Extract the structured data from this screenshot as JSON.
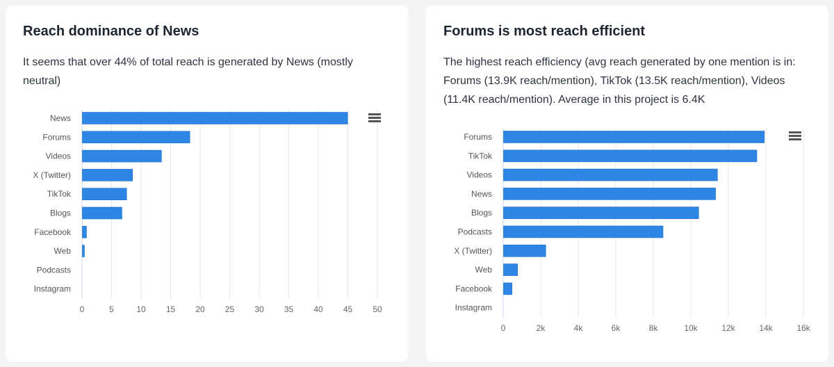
{
  "cards": [
    {
      "title": "Reach dominance of News",
      "description": "It seems that over 44% of total reach is generated by News (mostly neutral)",
      "menu_icon": "hamburger-menu-icon"
    },
    {
      "title": "Forums is most reach efficient",
      "description": "The highest reach efficiency (avg reach generated by one mention is in: Forums (13.9K reach/mention), TikTok (13.5K reach/mention), Videos (11.4K reach/mention). Average in this project is 6.4K",
      "menu_icon": "hamburger-menu-icon"
    }
  ],
  "chart_data": [
    {
      "type": "bar",
      "orientation": "horizontal",
      "categories": [
        "News",
        "Forums",
        "Videos",
        "X (Twitter)",
        "TikTok",
        "Blogs",
        "Facebook",
        "Web",
        "Podcasts",
        "Instagram"
      ],
      "values": [
        44.9,
        18.2,
        13.4,
        8.5,
        7.5,
        6.7,
        0.7,
        0.35,
        0,
        0
      ],
      "xlim": [
        0,
        50
      ],
      "ticks": [
        "0",
        "5",
        "10",
        "15",
        "20",
        "25",
        "30",
        "35",
        "40",
        "45",
        "50"
      ],
      "tick_values": [
        0,
        5,
        10,
        15,
        20,
        25,
        30,
        35,
        40,
        45,
        50
      ],
      "grid": true,
      "color": "#2e86e4"
    },
    {
      "type": "bar",
      "orientation": "horizontal",
      "categories": [
        "Forums",
        "TikTok",
        "Videos",
        "News",
        "Blogs",
        "Podcasts",
        "X (Twitter)",
        "Web",
        "Facebook",
        "Instagram"
      ],
      "values": [
        13900,
        13500,
        11400,
        11300,
        10400,
        8500,
        2250,
        750,
        450,
        0
      ],
      "xlim": [
        0,
        16000
      ],
      "ticks": [
        "0",
        "2k",
        "4k",
        "6k",
        "8k",
        "10k",
        "12k",
        "14k",
        "16k"
      ],
      "tick_values": [
        0,
        2000,
        4000,
        6000,
        8000,
        10000,
        12000,
        14000,
        16000
      ],
      "grid": true,
      "color": "#2e86e4"
    }
  ]
}
